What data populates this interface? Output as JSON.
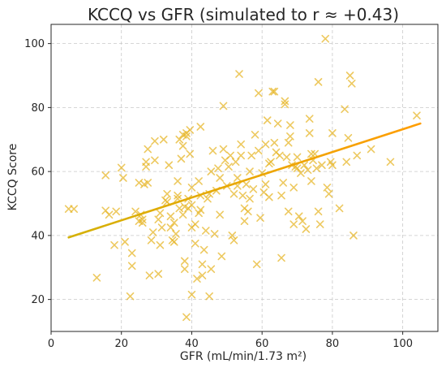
{
  "chart_data": {
    "type": "scatter",
    "title": "KCCQ vs GFR (simulated to r ≈ +0.43)",
    "xlabel": "GFR (mL/min/1.73 m²)",
    "ylabel": "KCCQ Score",
    "xlim": [
      0,
      110
    ],
    "ylim": [
      10,
      106
    ],
    "xticks": [
      0,
      20,
      40,
      60,
      80,
      100
    ],
    "yticks": [
      20,
      40,
      60,
      80,
      100
    ],
    "grid": true,
    "marker": "x",
    "colors": {
      "marker": "#e6b422",
      "fit_line_start": "#d4b106",
      "fit_line_end": "#ff9d00",
      "axes": "#262626",
      "grid": "#c8c8c8"
    },
    "fit_line": {
      "x": [
        5,
        105
      ],
      "y": [
        39.4,
        75.0
      ]
    },
    "points": [
      [
        5,
        48.3
      ],
      [
        6.5,
        48.3
      ],
      [
        13,
        26.8
      ],
      [
        15.5,
        58.8
      ],
      [
        15.5,
        47.8
      ],
      [
        16.5,
        46.5
      ],
      [
        18,
        37.0
      ],
      [
        18.5,
        47.5
      ],
      [
        20,
        61.2
      ],
      [
        20.5,
        58.0
      ],
      [
        21,
        38.0
      ],
      [
        22.5,
        21.0
      ],
      [
        23,
        34.5
      ],
      [
        23,
        30.5
      ],
      [
        24,
        47.5
      ],
      [
        25,
        44.5
      ],
      [
        25,
        56.5
      ],
      [
        25.5,
        46.5
      ],
      [
        26,
        45.0
      ],
      [
        26,
        44.0
      ],
      [
        26.5,
        56.0
      ],
      [
        27,
        61.5
      ],
      [
        27,
        63.0
      ],
      [
        27.5,
        56.5
      ],
      [
        27.5,
        67.0
      ],
      [
        28,
        27.5
      ],
      [
        28.5,
        38.5
      ],
      [
        29,
        41.0
      ],
      [
        29.5,
        69.5
      ],
      [
        29.5,
        63.5
      ],
      [
        30.5,
        45.0
      ],
      [
        30.5,
        28.0
      ],
      [
        31,
        37.0
      ],
      [
        31,
        47.0
      ],
      [
        31.5,
        42.5
      ],
      [
        32,
        70.0
      ],
      [
        32.5,
        51.0
      ],
      [
        33,
        53.0
      ],
      [
        33,
        50.5
      ],
      [
        33.5,
        62.0
      ],
      [
        34,
        42.5
      ],
      [
        34,
        46.0
      ],
      [
        34.5,
        38.5
      ],
      [
        35,
        44.0
      ],
      [
        35,
        38.0
      ],
      [
        35.5,
        40.5
      ],
      [
        36,
        57.0
      ],
      [
        36,
        52.5
      ],
      [
        36,
        51.5
      ],
      [
        36.5,
        48.5
      ],
      [
        36.5,
        70.0
      ],
      [
        37,
        64.0
      ],
      [
        37.5,
        71.5
      ],
      [
        37.5,
        68.0
      ],
      [
        37.5,
        46.5
      ],
      [
        38,
        49.0
      ],
      [
        38,
        32.0
      ],
      [
        38,
        29.5
      ],
      [
        38.5,
        72.0
      ],
      [
        38.5,
        71.0
      ],
      [
        38.5,
        14.5
      ],
      [
        39,
        51.5
      ],
      [
        39,
        48.5
      ],
      [
        39.5,
        73.0
      ],
      [
        39.5,
        65.5
      ],
      [
        40,
        55.0
      ],
      [
        40,
        49.5
      ],
      [
        40,
        42.5
      ],
      [
        40,
        21.5
      ],
      [
        41,
        43.5
      ],
      [
        41,
        37.5
      ],
      [
        41.5,
        26.5
      ],
      [
        42,
        57.0
      ],
      [
        42,
        47.0
      ],
      [
        42.5,
        74.0
      ],
      [
        42.5,
        52.5
      ],
      [
        42.5,
        48.0
      ],
      [
        43,
        27.5
      ],
      [
        43,
        31.0
      ],
      [
        43.5,
        35.5
      ],
      [
        44,
        41.5
      ],
      [
        44.5,
        51.5
      ],
      [
        45,
        53.0
      ],
      [
        45,
        21.0
      ],
      [
        45.5,
        60.0
      ],
      [
        45.5,
        29.5
      ],
      [
        46,
        66.5
      ],
      [
        46.5,
        40.5
      ],
      [
        47,
        54.0
      ],
      [
        47.5,
        61.0
      ],
      [
        48,
        58.0
      ],
      [
        48,
        46.5
      ],
      [
        48.5,
        33.5
      ],
      [
        49,
        67.0
      ],
      [
        49,
        80.5
      ],
      [
        49.5,
        63.5
      ],
      [
        50,
        55.5
      ],
      [
        50.5,
        61.5
      ],
      [
        51,
        65.0
      ],
      [
        51.5,
        40.0
      ],
      [
        52,
        38.5
      ],
      [
        52,
        53.0
      ],
      [
        52.5,
        63.0
      ],
      [
        53,
        58.0
      ],
      [
        53,
        55.5
      ],
      [
        53.5,
        90.5
      ],
      [
        54,
        68.5
      ],
      [
        54,
        65.0
      ],
      [
        54.5,
        52.5
      ],
      [
        55,
        48.5
      ],
      [
        55,
        44.5
      ],
      [
        55.5,
        56.0
      ],
      [
        56,
        47.5
      ],
      [
        56.5,
        60.0
      ],
      [
        56.5,
        51.5
      ],
      [
        57,
        65.0
      ],
      [
        57.5,
        54.5
      ],
      [
        58,
        71.5
      ],
      [
        58.5,
        31.0
      ],
      [
        59,
        84.5
      ],
      [
        59,
        66.5
      ],
      [
        59.5,
        45.5
      ],
      [
        60,
        59.5
      ],
      [
        60.5,
        53.5
      ],
      [
        61,
        68.5
      ],
      [
        61,
        56.0
      ],
      [
        61.5,
        76.0
      ],
      [
        62,
        62.5
      ],
      [
        62,
        52.0
      ],
      [
        62.5,
        63.0
      ],
      [
        63,
        85.0
      ],
      [
        63.5,
        85.0
      ],
      [
        63.5,
        69.0
      ],
      [
        64,
        66.0
      ],
      [
        64.5,
        75.0
      ],
      [
        65,
        65.0
      ],
      [
        65.5,
        33.0
      ],
      [
        65.5,
        52.5
      ],
      [
        66,
        56.5
      ],
      [
        66.5,
        82.0
      ],
      [
        66.5,
        81.0
      ],
      [
        67,
        64.5
      ],
      [
        67.5,
        69.0
      ],
      [
        67.5,
        47.5
      ],
      [
        68,
        74.5
      ],
      [
        68,
        71.0
      ],
      [
        68.5,
        62.0
      ],
      [
        69,
        55.0
      ],
      [
        69,
        43.5
      ],
      [
        69.5,
        61.5
      ],
      [
        70,
        64.5
      ],
      [
        70,
        61.0
      ],
      [
        70.5,
        46.0
      ],
      [
        71,
        59.5
      ],
      [
        71.5,
        44.5
      ],
      [
        72,
        62.0
      ],
      [
        72.5,
        42.0
      ],
      [
        73,
        60.5
      ],
      [
        73.5,
        76.5
      ],
      [
        73.5,
        72.0
      ],
      [
        74,
        65.5
      ],
      [
        74,
        57.0
      ],
      [
        74.5,
        63.5
      ],
      [
        75,
        65.5
      ],
      [
        75.5,
        61.0
      ],
      [
        76,
        88.0
      ],
      [
        76,
        47.5
      ],
      [
        76.5,
        43.5
      ],
      [
        77,
        62.0
      ],
      [
        78,
        101.5
      ],
      [
        78.5,
        55.0
      ],
      [
        79,
        53.0
      ],
      [
        79.5,
        63.0
      ],
      [
        80,
        72.0
      ],
      [
        80,
        62.0
      ],
      [
        82,
        48.5
      ],
      [
        83.5,
        79.5
      ],
      [
        84,
        63.0
      ],
      [
        84.5,
        70.5
      ],
      [
        85,
        90.0
      ],
      [
        85.5,
        87.5
      ],
      [
        86,
        40.0
      ],
      [
        87,
        65.0
      ],
      [
        91,
        67.0
      ],
      [
        96.5,
        63.0
      ],
      [
        104,
        77.5
      ]
    ]
  }
}
